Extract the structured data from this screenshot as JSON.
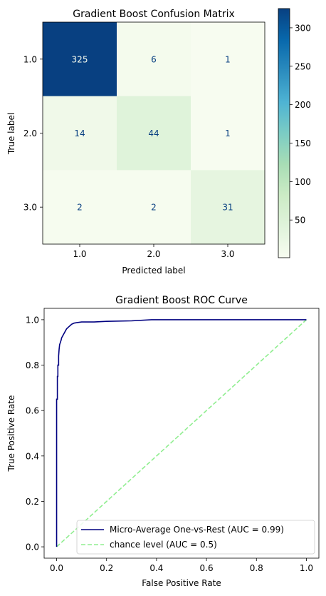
{
  "chart_data": [
    {
      "type": "heatmap",
      "title": "Gradient Boost Confusion Matrix",
      "xlabel": "Predicted label",
      "ylabel": "True label",
      "x_categories": [
        "1.0",
        "2.0",
        "3.0"
      ],
      "y_categories": [
        "1.0",
        "2.0",
        "3.0"
      ],
      "values": [
        [
          325,
          6,
          1
        ],
        [
          14,
          44,
          1
        ],
        [
          2,
          2,
          31
        ]
      ],
      "colorbar": {
        "min": 1,
        "max": 325,
        "ticks": [
          50,
          100,
          150,
          200,
          250,
          300
        ],
        "tick_labels": [
          "50",
          "100",
          "150",
          "200",
          "250",
          "300"
        ],
        "colormap": "GnBu",
        "colors": [
          "#f7fcf0",
          "#e0f3db",
          "#ccebc5",
          "#a8ddb5",
          "#7bccc4",
          "#4eb3d3",
          "#2b8cbe",
          "#0868ac",
          "#084081"
        ]
      },
      "text_colors": {
        "light_cell": "#084081",
        "dark_cell": "#f7fcf0"
      }
    },
    {
      "type": "line",
      "title": "Gradient Boost ROC Curve",
      "xlabel": "False Positive Rate",
      "ylabel": "True Positive Rate",
      "xlim": [
        -0.05,
        1.05
      ],
      "ylim": [
        -0.05,
        1.05
      ],
      "xticks": [
        0.0,
        0.2,
        0.4,
        0.6,
        0.8,
        1.0
      ],
      "xtick_labels": [
        "0.0",
        "0.2",
        "0.4",
        "0.6",
        "0.8",
        "1.0"
      ],
      "yticks": [
        0.0,
        0.2,
        0.4,
        0.6,
        0.8,
        1.0
      ],
      "ytick_labels": [
        "0.0",
        "0.2",
        "0.4",
        "0.6",
        "0.8",
        "1.0"
      ],
      "legend_position": "lower-right",
      "series": [
        {
          "name": "Micro-Average One-vs-Rest (AUC = 0.99)",
          "color": "#000080",
          "style": "solid",
          "x": [
            0,
            0,
            0.003,
            0.003,
            0.005,
            0.005,
            0.008,
            0.008,
            0.01,
            0.012,
            0.015,
            0.018,
            0.02,
            0.025,
            0.03,
            0.035,
            0.04,
            0.05,
            0.055,
            0.06,
            0.07,
            0.08,
            0.1,
            0.15,
            0.2,
            0.3,
            0.38,
            0.5,
            0.7,
            1.0
          ],
          "y": [
            0,
            0.65,
            0.65,
            0.75,
            0.75,
            0.8,
            0.8,
            0.84,
            0.87,
            0.89,
            0.9,
            0.91,
            0.92,
            0.93,
            0.94,
            0.95,
            0.96,
            0.97,
            0.975,
            0.98,
            0.985,
            0.987,
            0.99,
            0.99,
            0.993,
            0.995,
            1.0,
            1.0,
            1.0,
            1.0
          ]
        },
        {
          "name": "chance level (AUC = 0.5)",
          "color": "#90ee90",
          "style": "dashed",
          "x": [
            0,
            1
          ],
          "y": [
            0,
            1
          ]
        }
      ]
    }
  ]
}
